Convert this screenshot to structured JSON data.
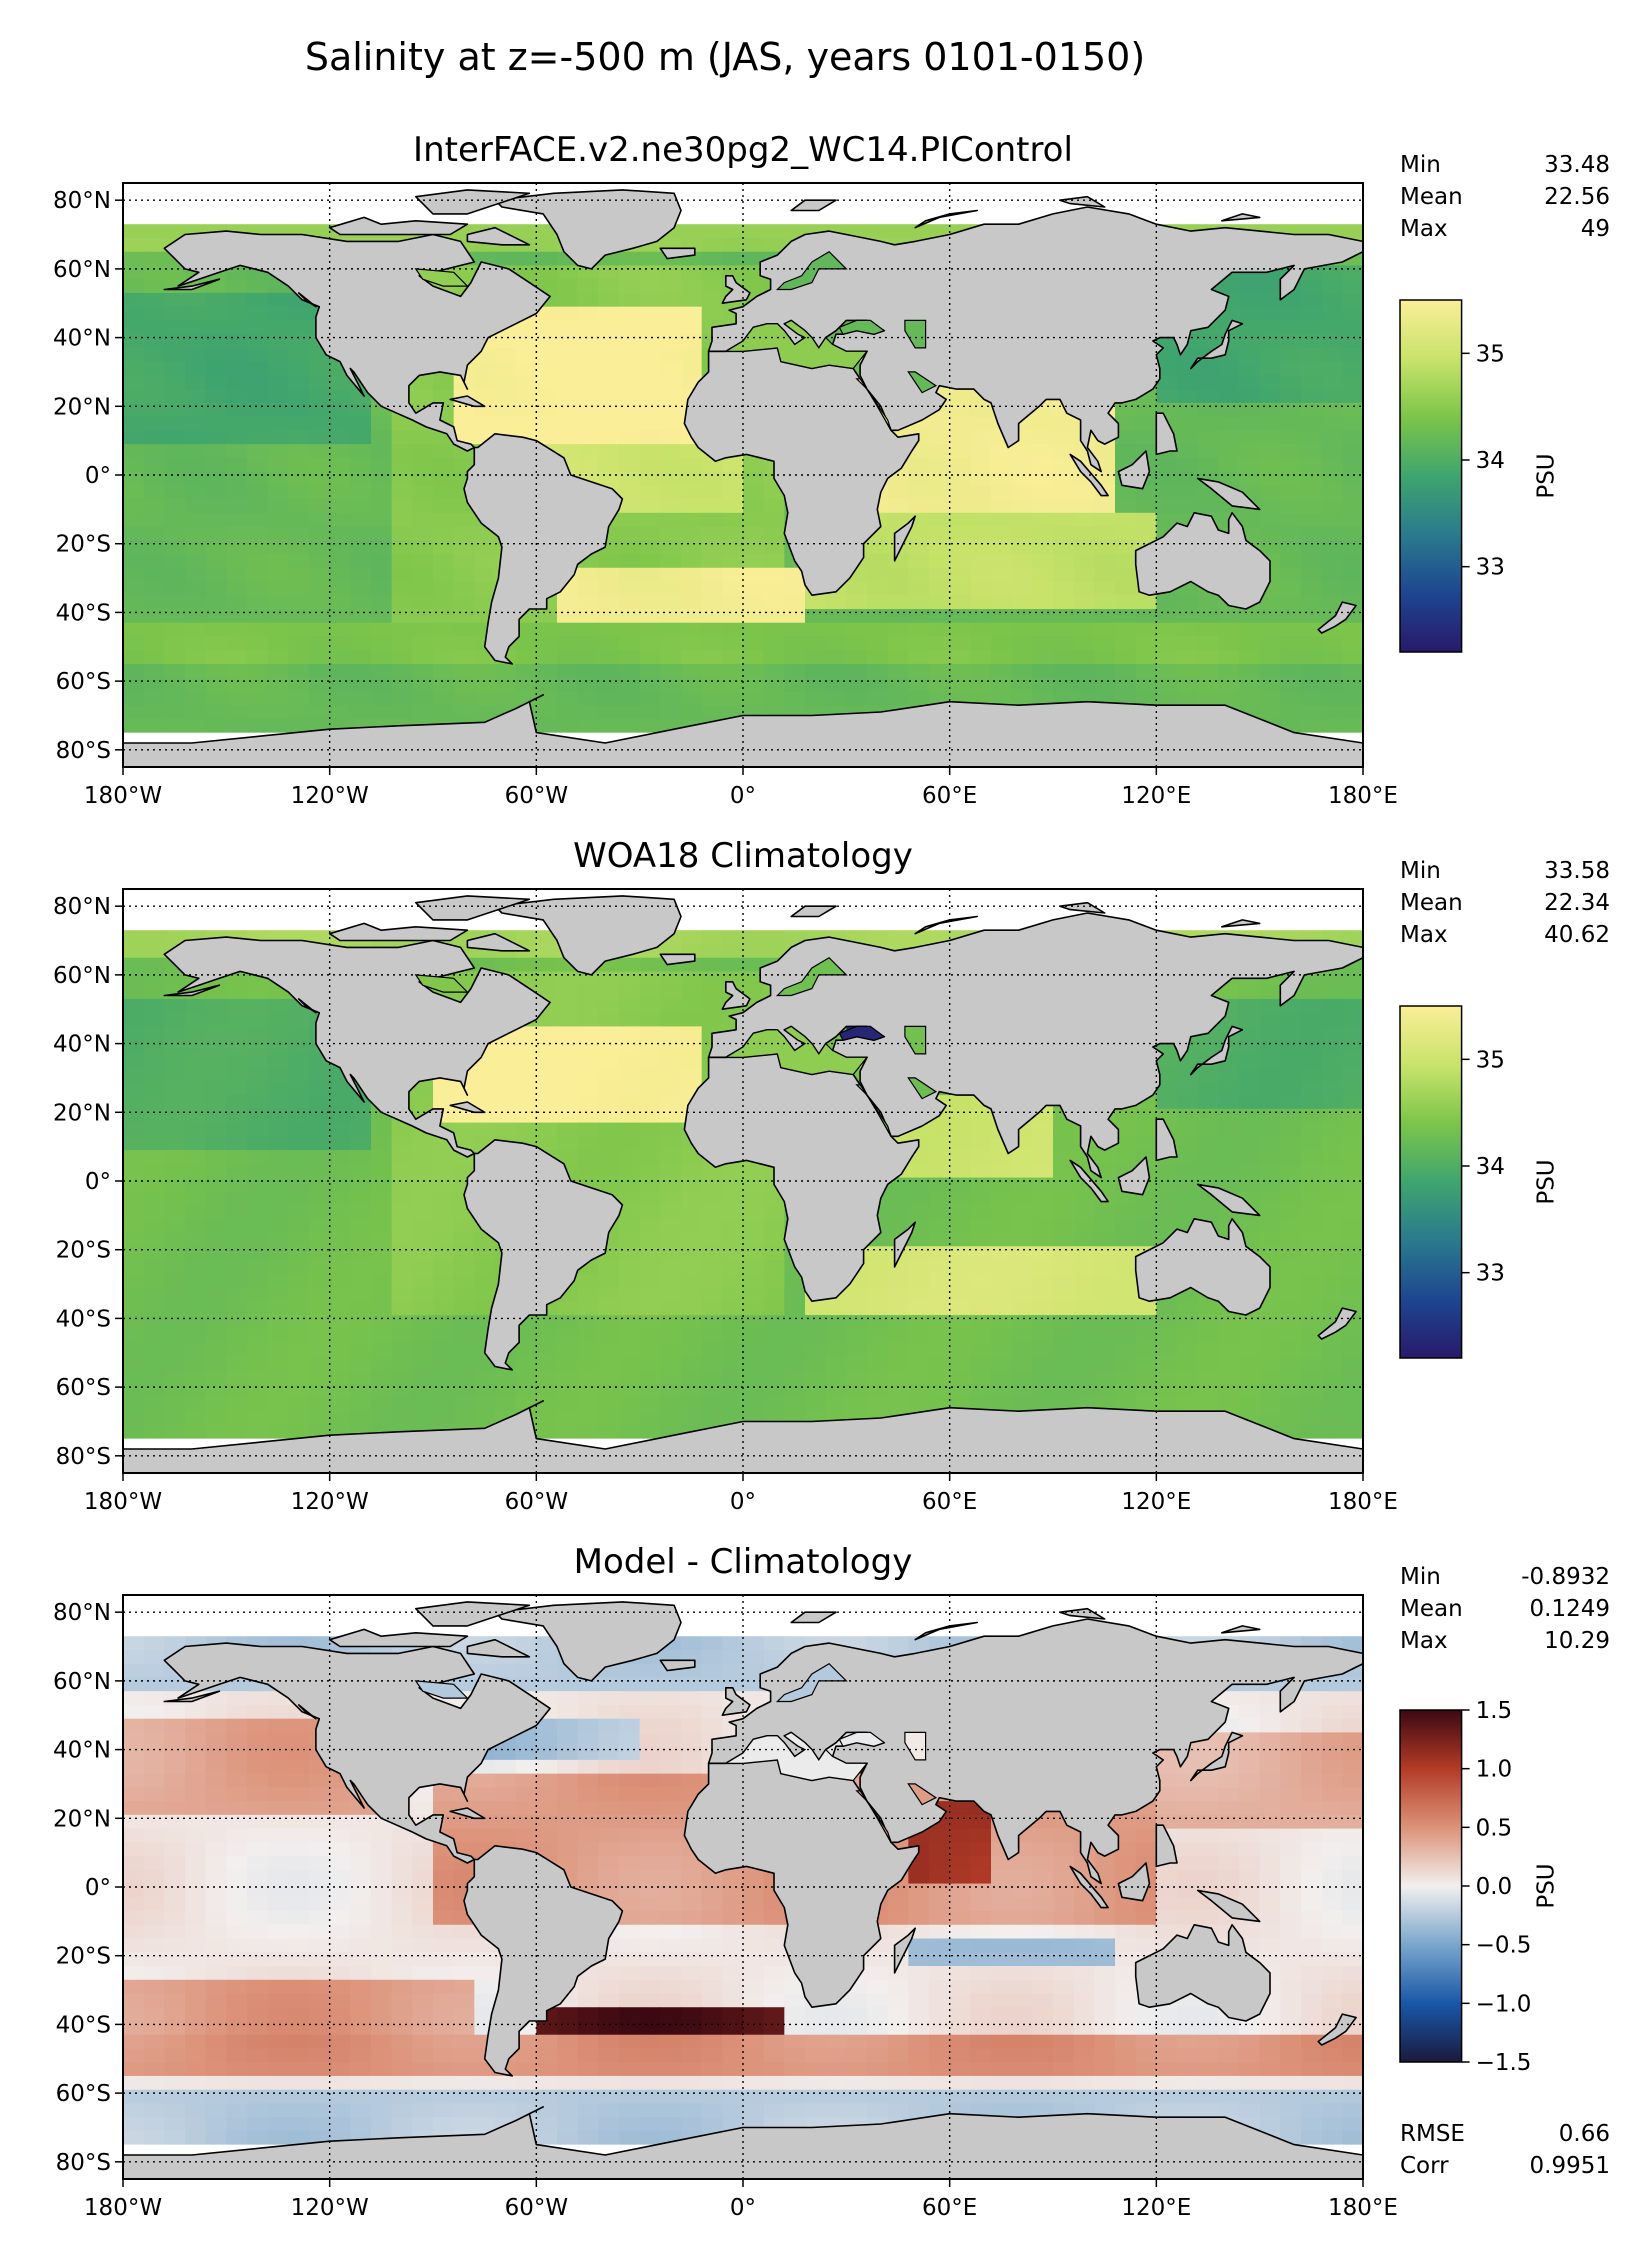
{
  "suptitle": "Salinity at z=-500 m (JAS, years 0101-0150)",
  "lon_ticks": [
    "180°W",
    "120°W",
    "60°W",
    "0°",
    "60°E",
    "120°E",
    "180°E"
  ],
  "lat_ticks": [
    "80°N",
    "60°N",
    "40°N",
    "20°N",
    "0°",
    "20°S",
    "40°S",
    "60°S",
    "80°S"
  ],
  "colors": {
    "land": "#c8c8c8",
    "no_data": "#ffffff",
    "haline": [
      "#29196b",
      "#1e4690",
      "#2a7a8e",
      "#3fa56e",
      "#7cc54a",
      "#c9e36a",
      "#fbee98"
    ],
    "balance": [
      "#1a1a3e",
      "#1958a8",
      "#7aa6cc",
      "#f2efee",
      "#dc9279",
      "#b33b27",
      "#3c0912"
    ]
  },
  "chart_data": [
    {
      "type": "heatmap",
      "title": "InterFACE.v2.ne30pg2_WC14.PIControl",
      "xlim": [
        -180,
        180
      ],
      "ylim": [
        -85,
        85
      ],
      "grid": true,
      "stats": [
        {
          "label": "Min",
          "value": "33.48"
        },
        {
          "label": "Mean",
          "value": "22.56"
        },
        {
          "label": "Max",
          "value": "49"
        }
      ],
      "colorbar": {
        "label": "PSU",
        "range": [
          32.2,
          35.5
        ],
        "ticks": [
          "35",
          "34",
          "33"
        ],
        "tick_values": [
          35,
          34,
          33
        ],
        "cmap": "haline"
      }
    },
    {
      "type": "heatmap",
      "title": "WOA18 Climatology",
      "xlim": [
        -180,
        180
      ],
      "ylim": [
        -85,
        85
      ],
      "grid": true,
      "stats": [
        {
          "label": "Min",
          "value": "33.58"
        },
        {
          "label": "Mean",
          "value": "22.34"
        },
        {
          "label": "Max",
          "value": "40.62"
        }
      ],
      "colorbar": {
        "label": "PSU",
        "range": [
          32.2,
          35.5
        ],
        "ticks": [
          "35",
          "34",
          "33"
        ],
        "tick_values": [
          35,
          34,
          33
        ],
        "cmap": "haline"
      }
    },
    {
      "type": "heatmap",
      "title": "Model - Climatology",
      "xlim": [
        -180,
        180
      ],
      "ylim": [
        -85,
        85
      ],
      "grid": true,
      "stats": [
        {
          "label": "Min",
          "value": "-0.8932"
        },
        {
          "label": "Mean",
          "value": "0.1249"
        },
        {
          "label": "Max",
          "value": "10.29"
        }
      ],
      "colorbar": {
        "label": "PSU",
        "range": [
          -1.5,
          1.5
        ],
        "ticks": [
          "1.5",
          "1.0",
          "0.5",
          "0.0",
          "−0.5",
          "−1.0",
          "−1.5"
        ],
        "tick_values": [
          1.5,
          1.0,
          0.5,
          0.0,
          -0.5,
          -1.0,
          -1.5
        ],
        "cmap": "balance"
      },
      "metrics": [
        {
          "label": "RMSE",
          "value": "0.66"
        },
        {
          "label": "Corr",
          "value": "0.9951"
        }
      ]
    }
  ]
}
